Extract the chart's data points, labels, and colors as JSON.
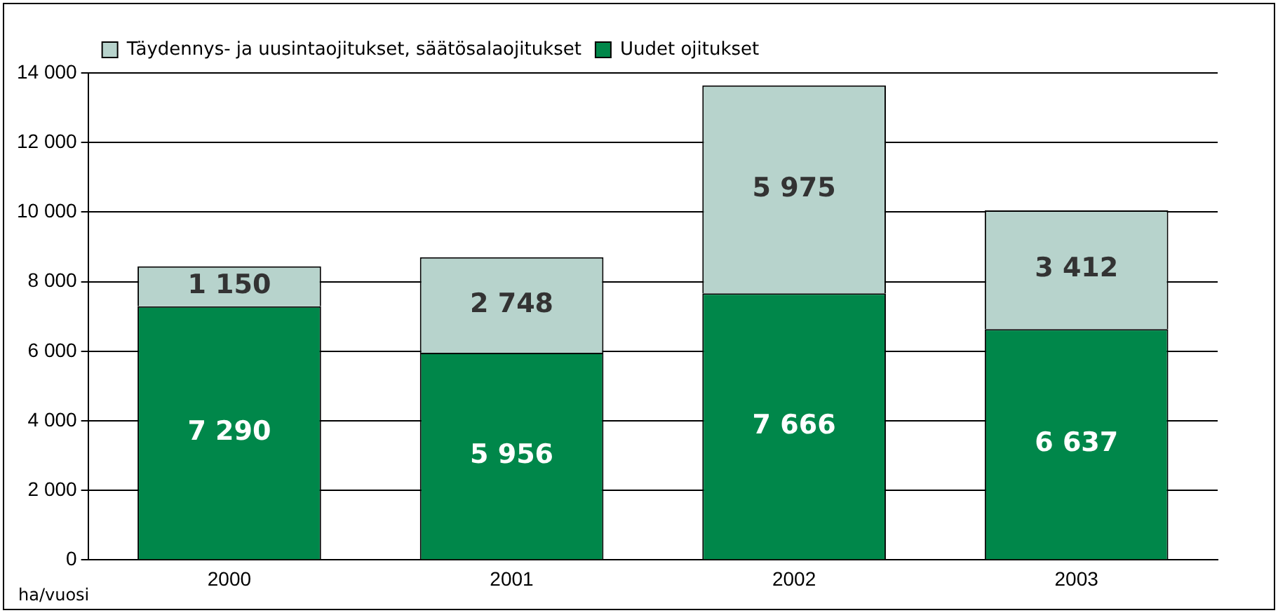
{
  "chart_data": {
    "type": "bar",
    "stacked": true,
    "ylabel": "ha/vuosi",
    "categories": [
      "2000",
      "2001",
      "2002",
      "2003"
    ],
    "series": [
      {
        "name": "Uudet ojitukset",
        "color": "#00874a",
        "values": [
          7290,
          5956,
          7666,
          6637
        ],
        "value_labels": [
          "7 290",
          "5 956",
          "7 666",
          "6 637"
        ]
      },
      {
        "name": "Täydennys- ja uusintaojitukset, säätösalaojitukset",
        "color": "#b7d3cc",
        "values": [
          1150,
          2748,
          5975,
          3412
        ],
        "value_labels": [
          "1 150",
          "2 748",
          "5 975",
          "3 412"
        ]
      }
    ],
    "ylim": [
      0,
      14000
    ],
    "yticks": [
      {
        "value": 0,
        "label": "0"
      },
      {
        "value": 2000,
        "label": "2 000"
      },
      {
        "value": 4000,
        "label": "4 000"
      },
      {
        "value": 6000,
        "label": "6 000"
      },
      {
        "value": 8000,
        "label": "8 000"
      },
      {
        "value": 10000,
        "label": "10 000"
      },
      {
        "value": 12000,
        "label": "12 000"
      },
      {
        "value": 14000,
        "label": "14 000"
      }
    ],
    "grid": "y",
    "legend": "top left"
  }
}
